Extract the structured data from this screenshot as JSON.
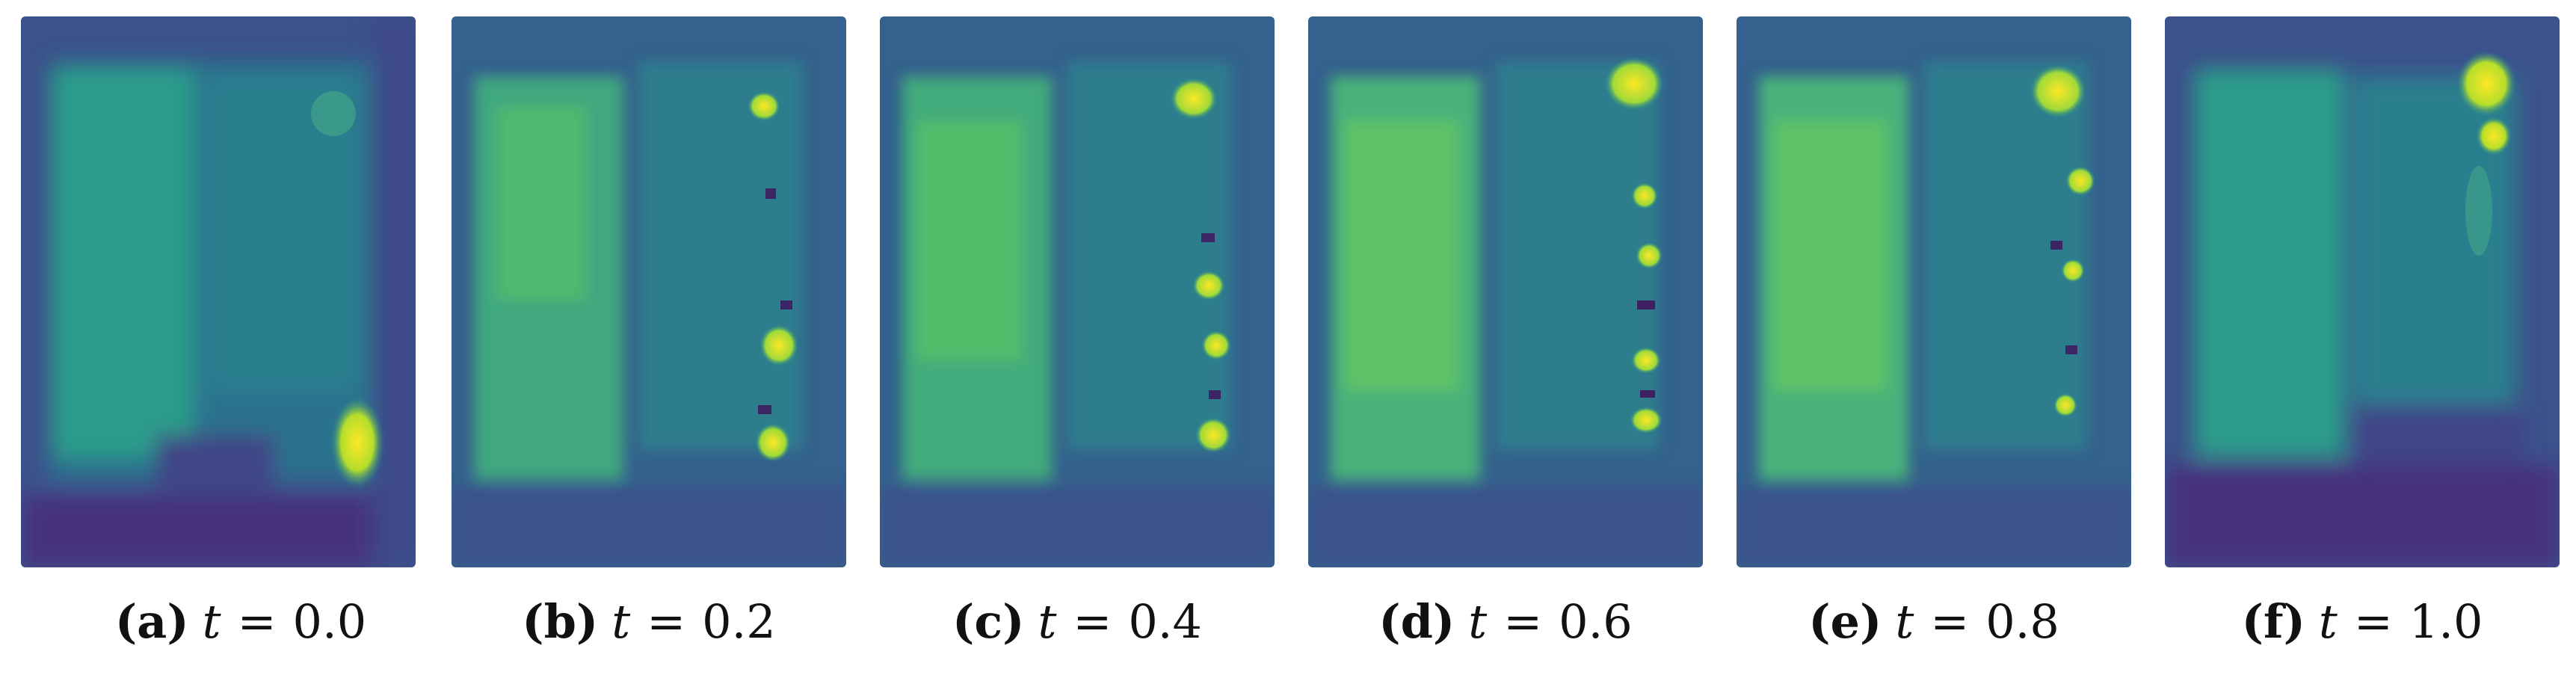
{
  "figure": {
    "colormap": [
      "#440154",
      "#3b528b",
      "#21918c",
      "#5ec962",
      "#fde725"
    ],
    "panels": [
      {
        "tag": "(a)",
        "variable": "t",
        "equals": "=",
        "value": "0.0"
      },
      {
        "tag": "(b)",
        "variable": "t",
        "equals": "=",
        "value": "0.2"
      },
      {
        "tag": "(c)",
        "variable": "t",
        "equals": "=",
        "value": "0.4"
      },
      {
        "tag": "(d)",
        "variable": "t",
        "equals": "=",
        "value": "0.6"
      },
      {
        "tag": "(e)",
        "variable": "t",
        "equals": "=",
        "value": "0.8"
      },
      {
        "tag": "(f)",
        "variable": "t",
        "equals": "=",
        "value": "1.0"
      }
    ]
  }
}
